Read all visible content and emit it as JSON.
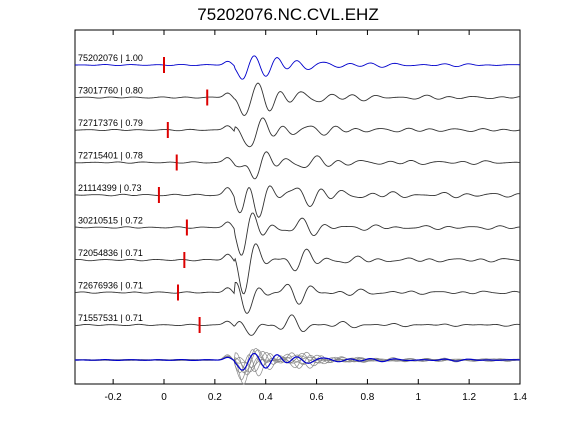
{
  "chart_data": {
    "type": "line",
    "title": "75202076.NC.CVL.EHZ",
    "xlabel": "",
    "ylabel": "",
    "xlim": [
      -0.35,
      1.4
    ],
    "x_ticks": [
      -0.2,
      0,
      0.2,
      0.4,
      0.6,
      0.8,
      1,
      1.2,
      1.4
    ],
    "x_tick_labels": [
      "-0.2",
      "0",
      "0.2",
      "0.4",
      "0.6",
      "0.8",
      "1",
      "1.2",
      "1.4"
    ],
    "grid": false,
    "colors": {
      "reference": "#0000cc",
      "trace": "#333333",
      "overlay": "#888888",
      "pick": "#dd0000"
    },
    "series": [
      {
        "name": "75202076 | 1.00",
        "pick": 0.0,
        "amp": 0.55,
        "seed": 1
      },
      {
        "name": "73017760 | 0.80",
        "pick": 0.17,
        "amp": 0.7,
        "seed": 2
      },
      {
        "name": "72717376 | 0.79",
        "pick": 0.015,
        "amp": 0.65,
        "seed": 3
      },
      {
        "name": "72715401 | 0.78",
        "pick": 0.05,
        "amp": 0.7,
        "seed": 4
      },
      {
        "name": "21114399 | 0.73",
        "pick": -0.02,
        "amp": 1.0,
        "seed": 5
      },
      {
        "name": "30210515 | 0.72",
        "pick": 0.09,
        "amp": 0.75,
        "seed": 6
      },
      {
        "name": "72054836 | 0.71",
        "pick": 0.08,
        "amp": 0.85,
        "seed": 7
      },
      {
        "name": "72676936 | 0.71",
        "pick": 0.055,
        "amp": 0.75,
        "seed": 8
      },
      {
        "name": "71557531 | 0.71",
        "pick": 0.14,
        "amp": 0.6,
        "seed": 9
      }
    ]
  }
}
